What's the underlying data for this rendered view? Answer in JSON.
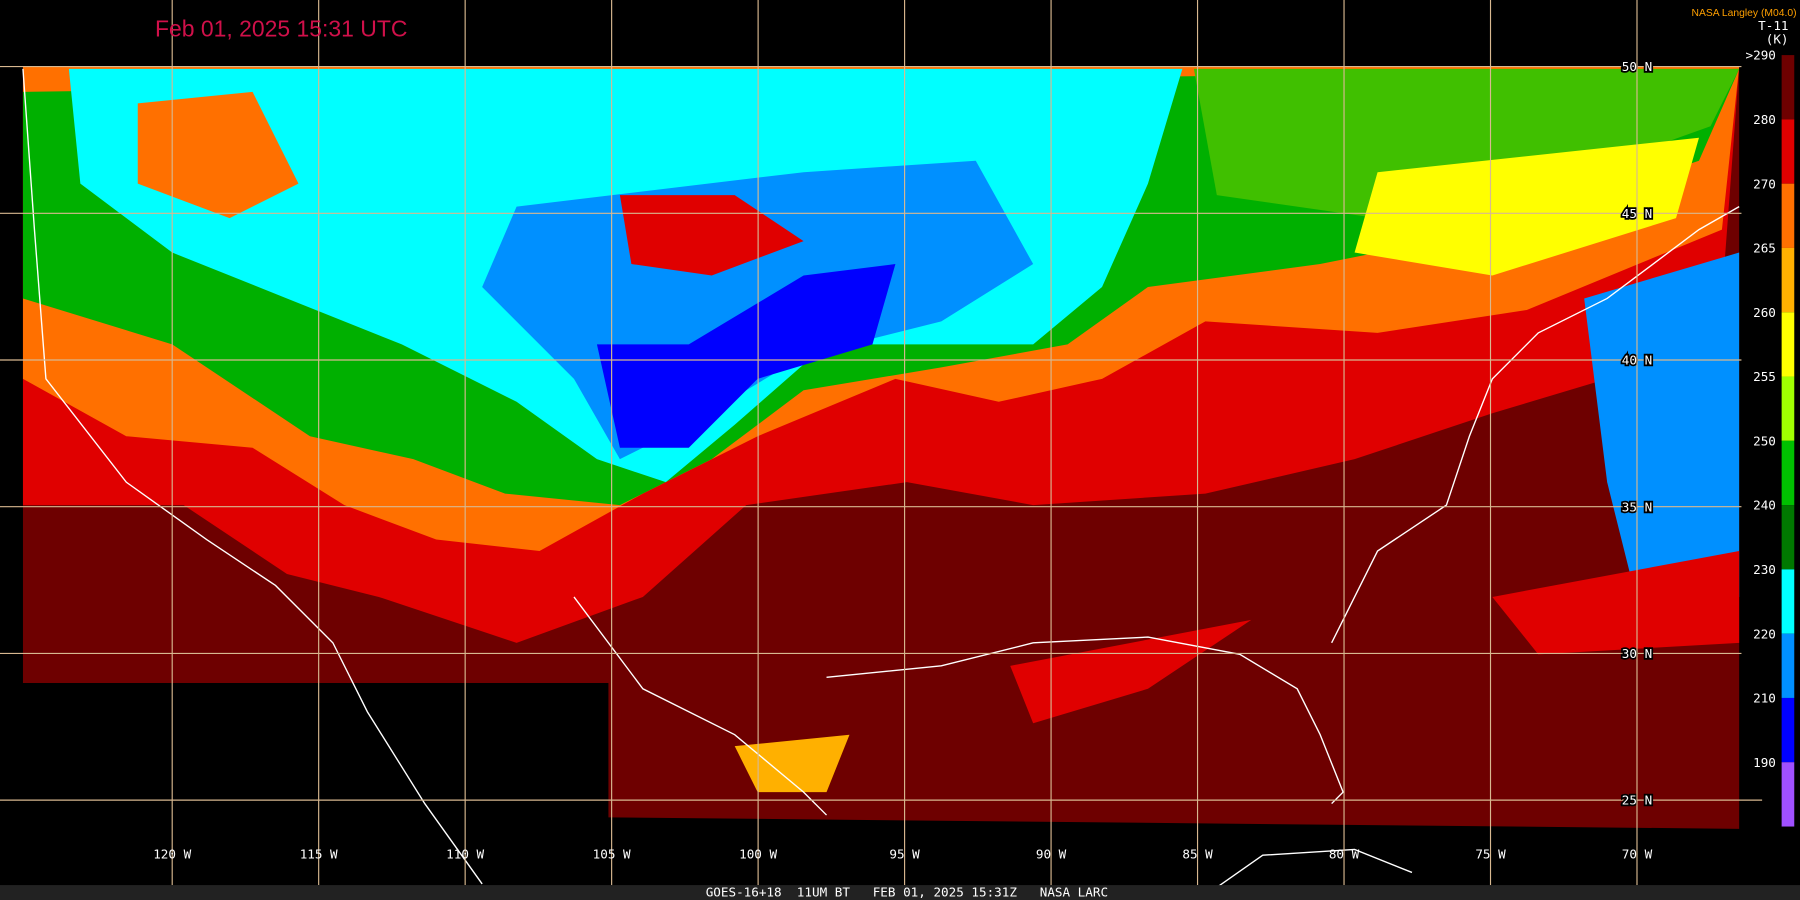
{
  "title": "Feb 01, 2025 15:31 UTC",
  "credit": "NASA Langley (M04.0)",
  "colorbar": {
    "title": "T-11",
    "unit": "(K)",
    "labels": [
      ">290",
      "280",
      "270",
      "265",
      "260",
      "255",
      "250",
      "240",
      "230",
      "220",
      "210",
      "190"
    ],
    "colors": [
      "#6e0000",
      "#e00000",
      "#ff7000",
      "#ffb000",
      "#ffff00",
      "#a0ff00",
      "#00c000",
      "#007800",
      "#00ffff",
      "#0090ff",
      "#0000ff",
      "#a050ff"
    ]
  },
  "latitude_labels": [
    "50 N",
    "45 N",
    "40 N",
    "35 N",
    "30 N",
    "25 N"
  ],
  "longitude_labels": [
    "120 W",
    "115 W",
    "110 W",
    "105 W",
    "100 W",
    "95 W",
    "90 W",
    "85 W",
    "80 W",
    "75 W",
    "70 W"
  ],
  "footer": "GOES-16+18  11UM BT   FEB 01, 2025 15:31Z   NASA LARC"
}
